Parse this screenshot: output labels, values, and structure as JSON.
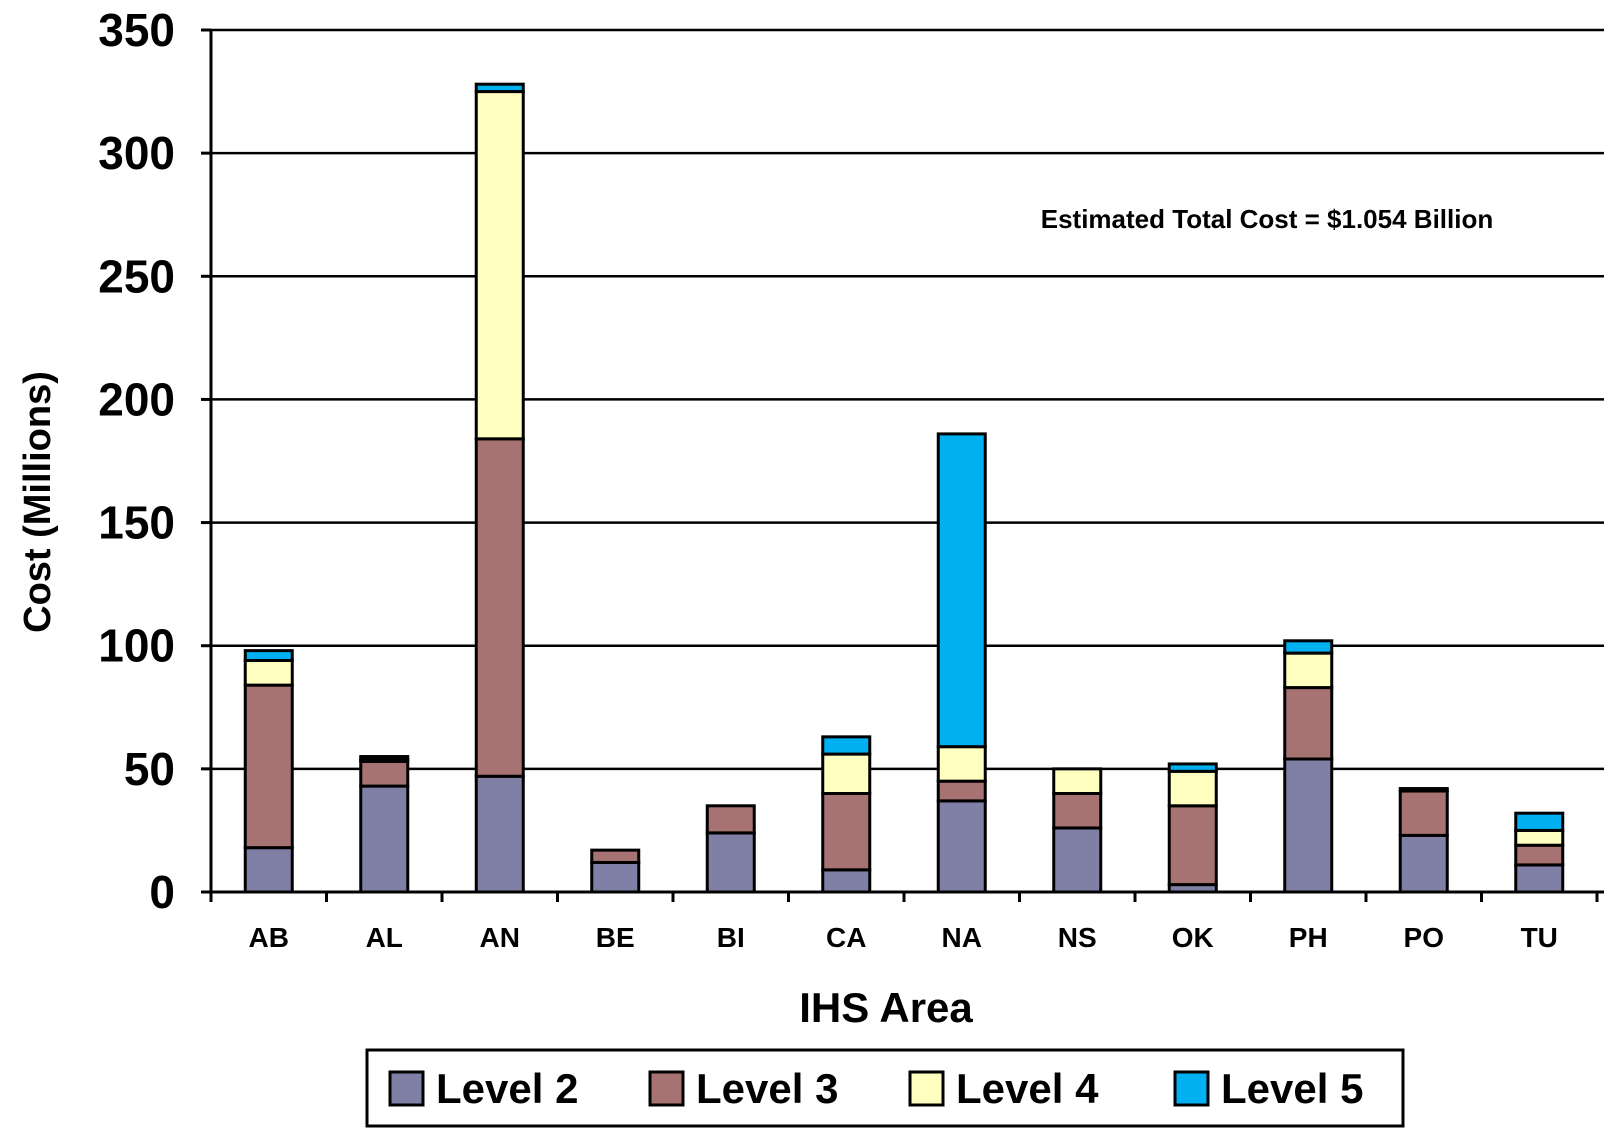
{
  "chart_data": {
    "type": "bar",
    "stacked": true,
    "title": "",
    "xlabel": "IHS Area",
    "ylabel": "Cost (Millions)",
    "ylim": [
      0,
      350
    ],
    "yticks": [
      0,
      50,
      100,
      150,
      200,
      250,
      300,
      350
    ],
    "grid": true,
    "legend_position": "bottom",
    "annotation": "Estimated Total Cost = $1.054 Billion",
    "categories": [
      "AB",
      "AL",
      "AN",
      "BE",
      "BI",
      "CA",
      "NA",
      "NS",
      "OK",
      "PH",
      "PO",
      "TU"
    ],
    "series": [
      {
        "name": "Level 2",
        "color": "#8080a6",
        "values": [
          18,
          43,
          47,
          12,
          24,
          9,
          37,
          26,
          3,
          54,
          23,
          11
        ]
      },
      {
        "name": "Level 3",
        "color": "#a67272",
        "values": [
          66,
          10,
          137,
          5,
          11,
          31,
          8,
          14,
          32,
          29,
          18,
          8
        ]
      },
      {
        "name": "Level 4",
        "color": "#ffffc0",
        "values": [
          10,
          1,
          141,
          0,
          0,
          16,
          14,
          10,
          14,
          14,
          1,
          6
        ]
      },
      {
        "name": "Level 5",
        "color": "#00b0f0",
        "values": [
          4,
          1,
          3,
          0,
          0,
          7,
          127,
          0,
          3,
          5,
          0,
          7
        ]
      }
    ]
  }
}
